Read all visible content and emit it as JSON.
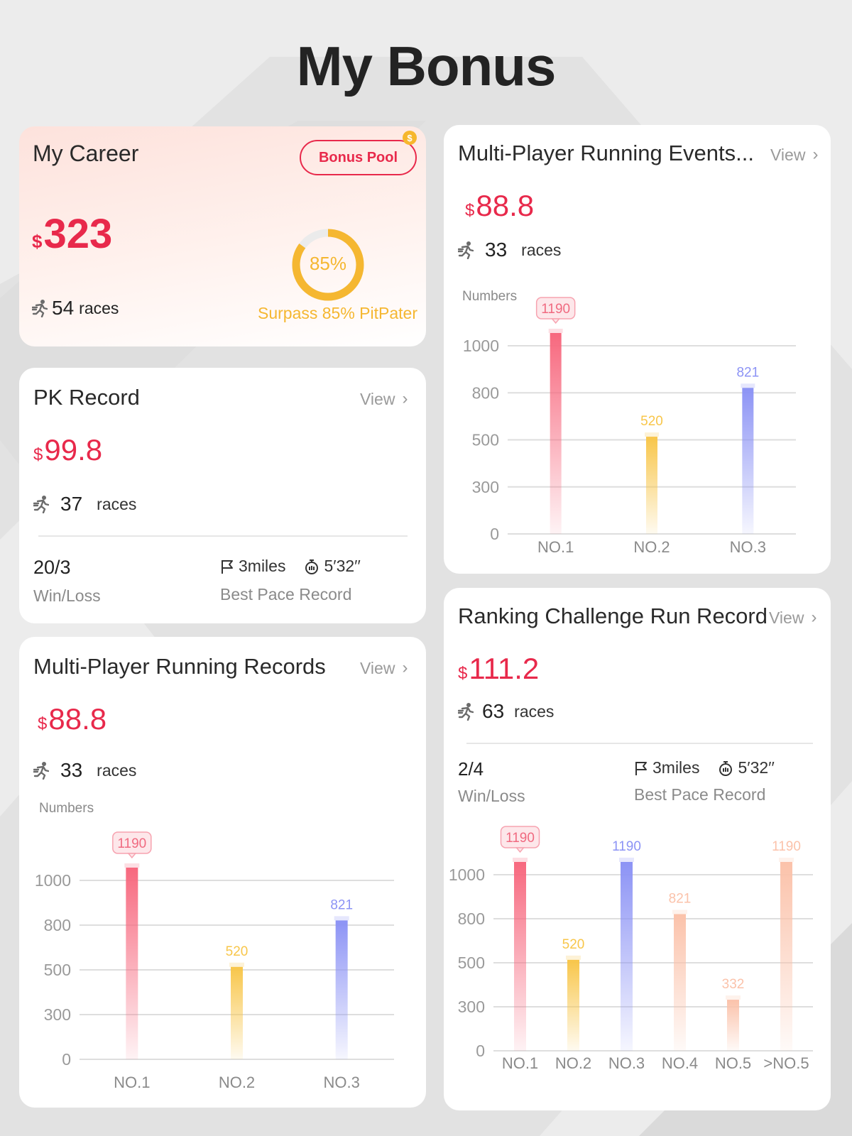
{
  "page": {
    "title": "My Bonus"
  },
  "career": {
    "title": "My Career",
    "bonus_pool_label": "Bonus Pool",
    "coin_icon": "coin-icon",
    "currency": "$",
    "amount": "323",
    "races_count": "54",
    "races_unit": "races",
    "progress_percent": 85,
    "progress_label": "85%",
    "surpass_text": "Surpass 85% PitPater"
  },
  "pk_record": {
    "title": "PK Record",
    "view_label": "View",
    "currency": "$",
    "amount": "99.8",
    "races_count": "37",
    "races_unit": "races",
    "win_loss_value": "20/3",
    "win_loss_label": "Win/Loss",
    "distance": "3miles",
    "pace": "5′32′′",
    "pace_label": "Best Pace Record"
  },
  "mp_records": {
    "title": "Multi-Player Running  Records",
    "view_label": "View",
    "currency": "$",
    "amount": "88.8",
    "races_count": "33",
    "races_unit": "races"
  },
  "mp_events": {
    "title": "Multi-Player Running Events...",
    "view_label": "View",
    "currency": "$",
    "amount": "88.8",
    "races_count": "33",
    "races_unit": "races"
  },
  "ranking": {
    "title": "Ranking Challenge Run Record",
    "view_label": "View",
    "currency": "$",
    "amount": "111.2",
    "races_count": "63",
    "races_unit": "races",
    "win_loss_value": "2/4",
    "win_loss_label": "Win/Loss",
    "distance": "3miles",
    "pace": "5′32′′",
    "pace_label": "Best Pace Record"
  },
  "colors": {
    "accent_red": "#e8294b",
    "gold": "#f5b731",
    "bar_red": "#f7687e",
    "bar_yellow": "#f8c64a",
    "bar_blue": "#8c93f5",
    "bar_peach": "#fbc2aa"
  },
  "chart_data": [
    {
      "id": "mp_records",
      "type": "bar",
      "ylabel": "Numbers",
      "yticks": [
        "0",
        "300",
        "500",
        "800",
        "1000"
      ],
      "categories": [
        "NO.1",
        "NO.2",
        "NO.3"
      ],
      "values": [
        1190,
        520,
        821
      ],
      "value_labels": [
        "1190",
        "520",
        "821"
      ],
      "highlight_index": 0,
      "colors": [
        "#f7687e",
        "#f8c64a",
        "#8c93f5"
      ],
      "grid": true
    },
    {
      "id": "mp_events",
      "type": "bar",
      "ylabel": "Numbers",
      "yticks": [
        "0",
        "300",
        "500",
        "800",
        "1000"
      ],
      "categories": [
        "NO.1",
        "NO.2",
        "NO.3"
      ],
      "values": [
        1190,
        520,
        821
      ],
      "value_labels": [
        "1190",
        "520",
        "821"
      ],
      "highlight_index": 0,
      "colors": [
        "#f7687e",
        "#f8c64a",
        "#8c93f5"
      ],
      "grid": true
    },
    {
      "id": "ranking",
      "type": "bar",
      "ylabel": "Numbers",
      "yticks": [
        "0",
        "300",
        "500",
        "800",
        "1000"
      ],
      "categories": [
        "NO.1",
        "NO.2",
        "NO.3",
        "NO.4",
        "NO.5",
        ">NO.5"
      ],
      "values": [
        1190,
        520,
        1190,
        821,
        332,
        1190
      ],
      "value_labels": [
        "1190",
        "520",
        "1190",
        "821",
        "332",
        "1190"
      ],
      "highlight_index": 0,
      "colors": [
        "#f7687e",
        "#f8c64a",
        "#8c93f5",
        "#fbc2aa",
        "#fbc2aa",
        "#fbc2aa"
      ],
      "grid": true
    }
  ]
}
